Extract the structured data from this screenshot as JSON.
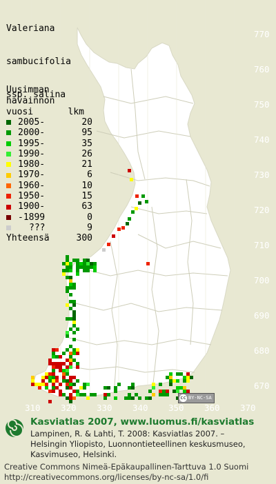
{
  "title_lines": [
    "Valeriana",
    "sambucifolia",
    "ssp. salina"
  ],
  "legend": {
    "header_lines": [
      "Uusimman",
      "havainnon"
    ],
    "col_year": "vuosi",
    "col_count": "lkm",
    "rows": [
      {
        "label": "2005-",
        "count": "20",
        "color": "#006600"
      },
      {
        "label": "2000-",
        "count": "95",
        "color": "#009900"
      },
      {
        "label": "1995-",
        "count": "35",
        "color": "#00cc00"
      },
      {
        "label": "1990-",
        "count": "26",
        "color": "#33ee33"
      },
      {
        "label": "1980-",
        "count": "21",
        "color": "#ffff00"
      },
      {
        "label": "1970-",
        "count": "6",
        "color": "#ffcc00"
      },
      {
        "label": "1960-",
        "count": "10",
        "color": "#ff6600"
      },
      {
        "label": "1950-",
        "count": "15",
        "color": "#ee2200"
      },
      {
        "label": "1900-",
        "count": "63",
        "color": "#cc0000"
      },
      {
        "label": "-1899",
        "count": "0",
        "color": "#770000"
      },
      {
        "label": "???",
        "count": "9",
        "color": "#cccccc"
      }
    ],
    "total_label": "Yhteensä",
    "total_count": "300"
  },
  "axis": {
    "y_labels": [
      "770",
      "760",
      "750",
      "740",
      "730",
      "720",
      "710",
      "700",
      "690",
      "680",
      "670"
    ],
    "x_labels": [
      "310",
      "320",
      "330",
      "340",
      "350",
      "360",
      "370"
    ]
  },
  "license_badge": {
    "icon": "cc",
    "text": "BY-NC-SA"
  },
  "footer": {
    "site": "Kasviatlas 2007, www.luomus.fi/kasviatlas",
    "citation_lines": [
      "Lampinen, R. & Lahti, T. 2008: Kasviatlas 2007. –",
      "Helsingin Yliopisto, Luonnontieteellinen keskusmuseo,",
      "Kasvimuseo, Helsinki."
    ],
    "license_lines": [
      "Creative Commons Nimeä-Epäkaupallinen-Tarttuva 1.0 Suomi",
      "http://creativecommons.org/licenses/by-nc-sa/1.0/fi"
    ]
  },
  "colors": {
    "background": "#e8e8d2",
    "land": "#ffffff",
    "boundary": "#c9c9b4",
    "site_text": "#1d7a2e"
  }
}
